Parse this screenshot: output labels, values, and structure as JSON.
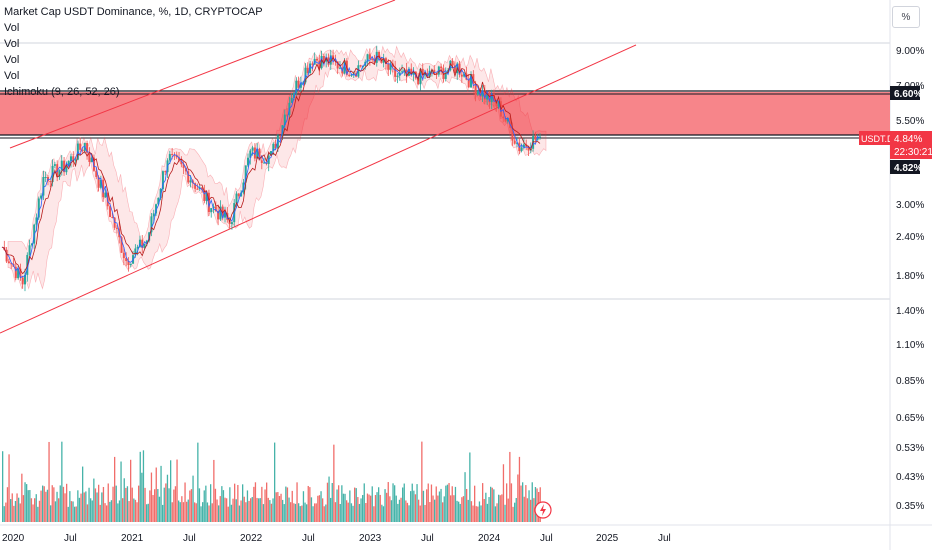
{
  "legend": {
    "title": "Market Cap USDT Dominance, %, 1D, CRYPTOCAP",
    "indicators": [
      "Vol",
      "Vol",
      "Vol",
      "Vol"
    ],
    "ichimoku": "Ichimoku (9, 26, 52, 26)"
  },
  "scale_button": "%",
  "price_axis": {
    "ticks": [
      "9.00%",
      "7.00%",
      "5.50%",
      "3.00%",
      "2.40%",
      "1.80%",
      "1.40%",
      "1.10%",
      "0.85%",
      "0.65%",
      "0.53%",
      "0.43%",
      "0.35%"
    ],
    "markers": {
      "upper_zone": "6.60%",
      "symbol": "USDT.D",
      "last_price": "4.84%",
      "countdown": "22:30:21",
      "lower_zone": "4.82%"
    }
  },
  "time_axis": {
    "ticks": [
      "2020",
      "Jul",
      "2021",
      "Jul",
      "2022",
      "Jul",
      "2023",
      "Jul",
      "2024",
      "Jul",
      "2025",
      "Jul"
    ]
  },
  "colors": {
    "up": "#26a69a",
    "down": "#ef5350",
    "zone": "#f7858a",
    "channel": "#f23645",
    "last_price_bg": "#f23645",
    "marker_bg": "#131722"
  },
  "chart_data": {
    "type": "line",
    "title": "Market Cap USDT Dominance, %, 1D, CRYPTOCAP",
    "y_scale": "log",
    "ylabel": "",
    "xlabel": "",
    "x": [
      "2020-01",
      "2020-03",
      "2020-05",
      "2020-07",
      "2020-09",
      "2020-11",
      "2021-01",
      "2021-03",
      "2021-05",
      "2021-07",
      "2021-09",
      "2021-11",
      "2022-01",
      "2022-03",
      "2022-05",
      "2022-07",
      "2022-09",
      "2022-11",
      "2023-01",
      "2023-03",
      "2023-05",
      "2023-07",
      "2023-09",
      "2023-11",
      "2024-01",
      "2024-03",
      "2024-05"
    ],
    "series": [
      {
        "values": [
          2.2,
          1.7,
          3.6,
          3.9,
          4.6,
          3.1,
          2.0,
          2.3,
          4.2,
          3.7,
          3.0,
          2.6,
          4.3,
          4.2,
          6.6,
          8.5,
          8.2,
          7.8,
          8.6,
          7.5,
          7.4,
          7.6,
          8.0,
          6.8,
          6.0,
          4.5,
          4.84
        ]
      }
    ],
    "zone": {
      "upper": 6.6,
      "lower": 4.82
    },
    "last": 4.84
  }
}
